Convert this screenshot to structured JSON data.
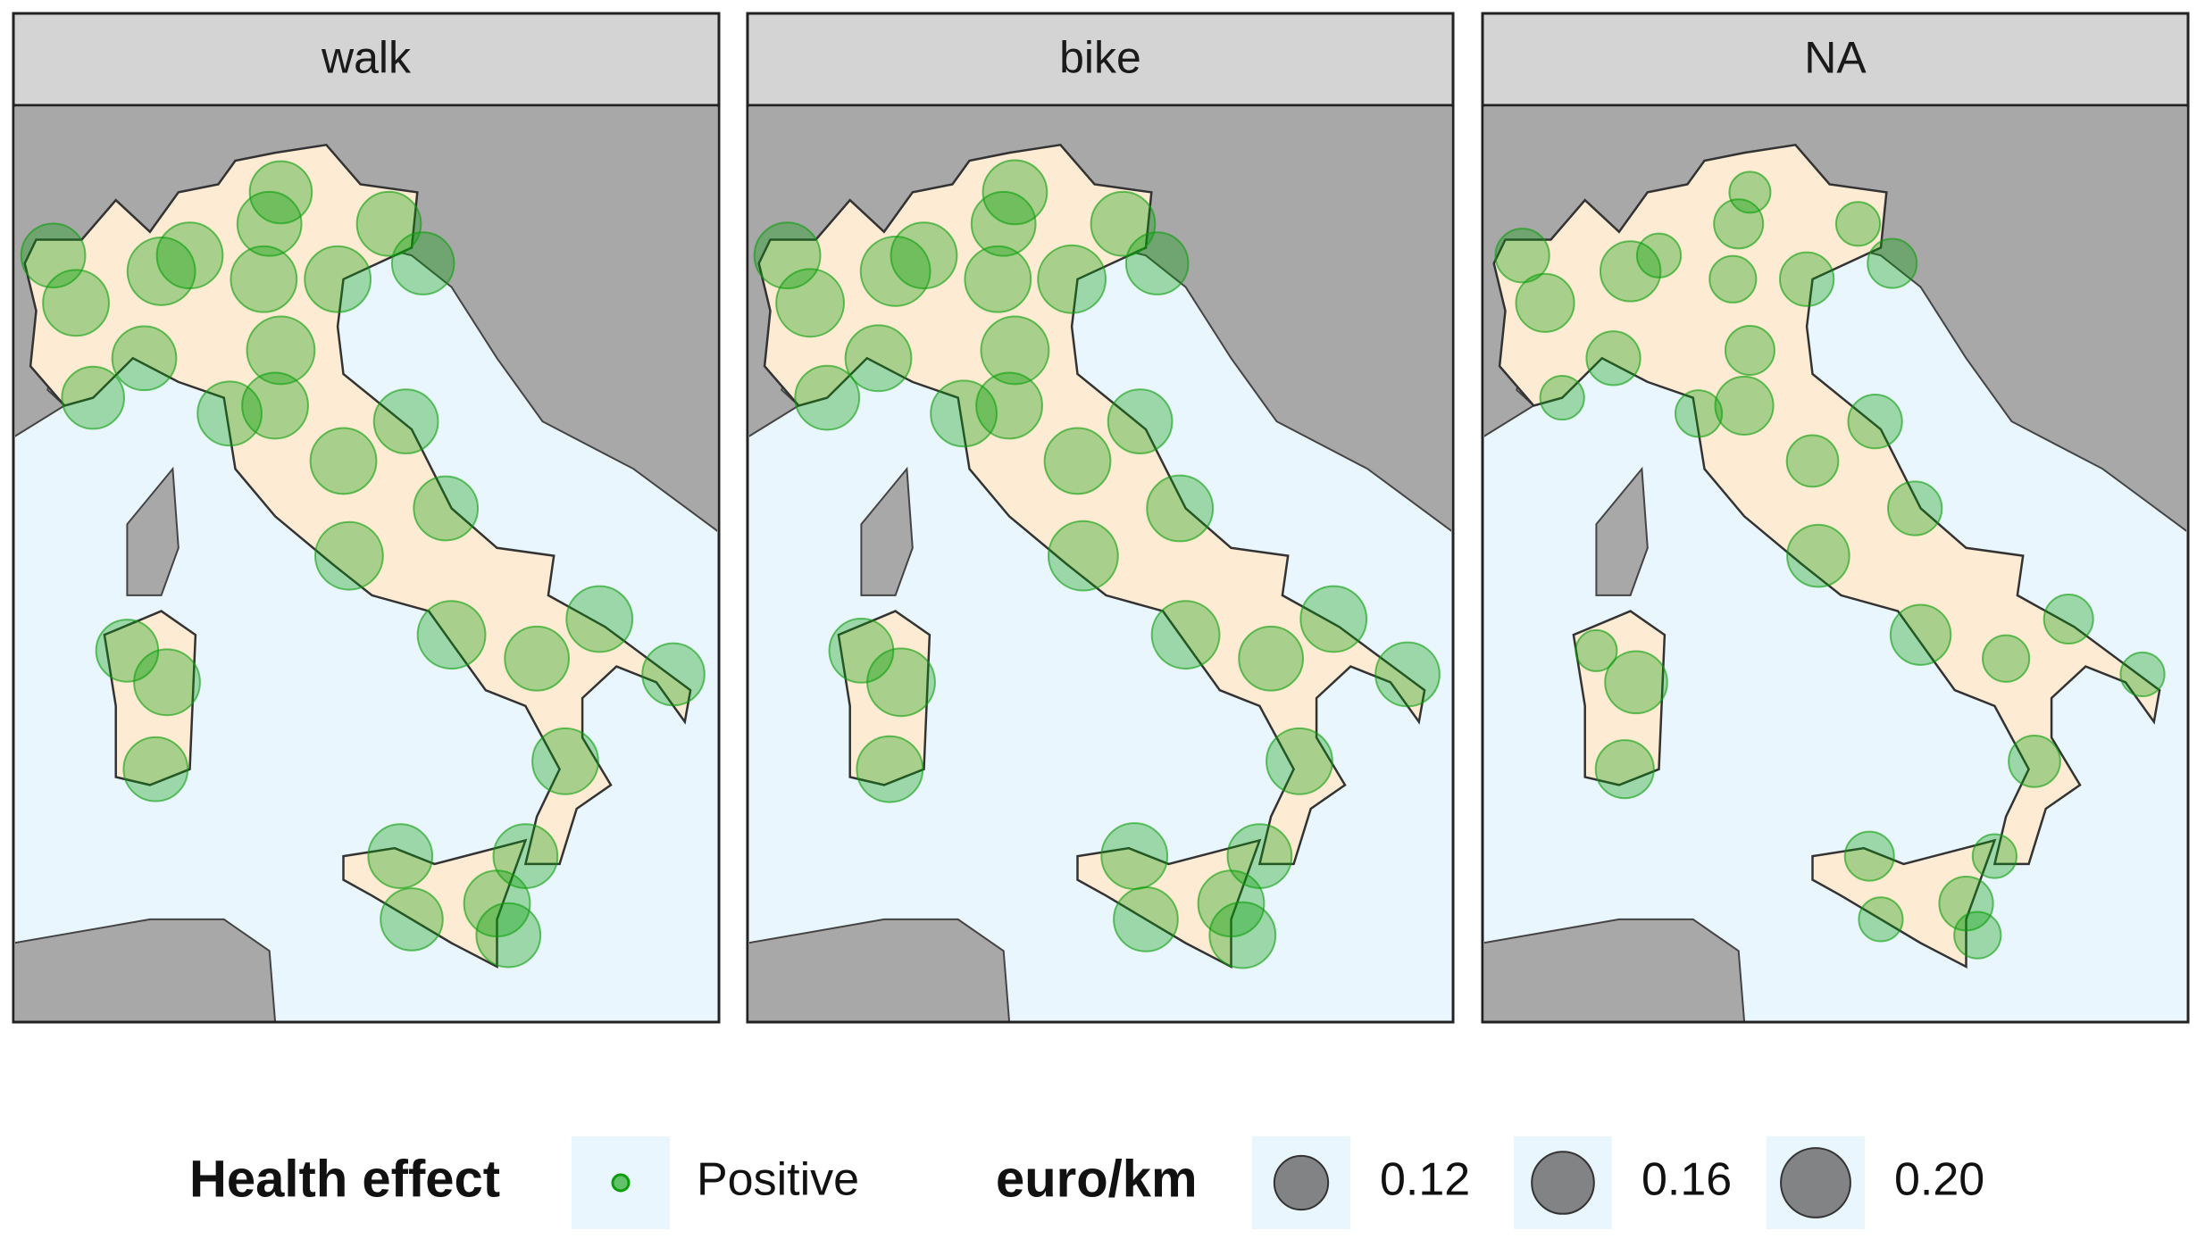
{
  "chart_data": {
    "type": "bubble-map",
    "panels": [
      {
        "label": "walk",
        "color": "#0a9e0a",
        "points": {
          "lon": [
            7.7,
            9.2,
            7.3,
            9.7,
            11.1,
            11.3,
            12.3,
            13.2,
            13.8,
            11.0,
            11.3,
            8.9,
            8.0,
            11.2,
            10.4,
            13.5,
            12.4,
            12.5,
            14.2,
            14.3,
            16.9,
            18.2,
            15.8,
            16.3,
            15.6,
            13.4,
            15.1,
            13.6,
            15.3,
            9.1,
            8.6,
            9.3
          ],
          "lat": [
            45.1,
            45.5,
            45.7,
            45.7,
            46.1,
            46.5,
            45.4,
            46.1,
            45.6,
            45.4,
            44.5,
            44.4,
            43.9,
            43.8,
            43.7,
            43.6,
            43.1,
            41.9,
            42.5,
            40.9,
            41.1,
            40.4,
            40.6,
            39.3,
            38.1,
            38.1,
            37.5,
            37.3,
            37.1,
            39.2,
            40.7,
            40.3
          ],
          "size": [
            0.18,
            0.19,
            0.17,
            0.18,
            0.17,
            0.16,
            0.18,
            0.17,
            0.16,
            0.18,
            0.19,
            0.17,
            0.16,
            0.18,
            0.17,
            0.17,
            0.18,
            0.19,
            0.17,
            0.19,
            0.18,
            0.16,
            0.17,
            0.18,
            0.17,
            0.17,
            0.18,
            0.16,
            0.17,
            0.17,
            0.16,
            0.18
          ]
        }
      },
      {
        "label": "bike",
        "color": "#0a9e0a",
        "points": {
          "lon": [
            7.7,
            9.2,
            7.3,
            9.7,
            11.1,
            11.3,
            12.3,
            13.2,
            13.8,
            11.0,
            11.3,
            8.9,
            8.0,
            11.2,
            10.4,
            13.5,
            12.4,
            12.5,
            14.2,
            14.3,
            16.9,
            18.2,
            15.8,
            16.3,
            15.6,
            13.4,
            15.1,
            13.6,
            15.3,
            9.1,
            8.6,
            9.3
          ],
          "lat": [
            45.1,
            45.5,
            45.7,
            45.7,
            46.1,
            46.5,
            45.4,
            46.1,
            45.6,
            45.4,
            44.5,
            44.4,
            43.9,
            43.8,
            43.7,
            43.6,
            43.1,
            41.9,
            42.5,
            40.9,
            41.1,
            40.4,
            40.6,
            39.3,
            38.1,
            38.1,
            37.5,
            37.3,
            37.1,
            39.2,
            40.7,
            40.3
          ],
          "size": [
            0.19,
            0.2,
            0.18,
            0.18,
            0.17,
            0.17,
            0.19,
            0.17,
            0.16,
            0.18,
            0.19,
            0.18,
            0.17,
            0.18,
            0.18,
            0.17,
            0.18,
            0.2,
            0.18,
            0.19,
            0.18,
            0.17,
            0.17,
            0.18,
            0.17,
            0.18,
            0.18,
            0.17,
            0.18,
            0.18,
            0.17,
            0.19
          ]
        }
      },
      {
        "label": "NA",
        "color": "#0a9e0a",
        "points": {
          "lon": [
            7.7,
            9.2,
            7.3,
            9.7,
            11.1,
            11.3,
            12.3,
            13.2,
            13.8,
            11.0,
            11.3,
            8.9,
            8.0,
            11.2,
            10.4,
            13.5,
            12.4,
            12.5,
            14.2,
            14.3,
            16.9,
            18.2,
            15.8,
            16.3,
            15.6,
            13.4,
            15.1,
            13.6,
            15.3,
            9.1,
            8.6,
            9.3
          ],
          "lat": [
            45.1,
            45.5,
            45.7,
            45.7,
            46.1,
            46.5,
            45.4,
            46.1,
            45.6,
            45.4,
            44.5,
            44.4,
            43.9,
            43.8,
            43.7,
            43.6,
            43.1,
            41.9,
            42.5,
            40.9,
            41.1,
            40.4,
            40.6,
            39.3,
            38.1,
            38.1,
            37.5,
            37.3,
            37.1,
            39.2,
            40.7,
            40.3
          ],
          "size": [
            0.14,
            0.15,
            0.12,
            0.08,
            0.1,
            0.07,
            0.12,
            0.08,
            0.1,
            0.09,
            0.1,
            0.12,
            0.08,
            0.14,
            0.09,
            0.12,
            0.11,
            0.16,
            0.12,
            0.15,
            0.1,
            0.08,
            0.09,
            0.11,
            0.08,
            0.1,
            0.12,
            0.08,
            0.09,
            0.14,
            0.07,
            0.16
          ]
        }
      }
    ],
    "legend": {
      "color_title": "Health effect",
      "color_key": "Positive",
      "size_title": "euro/km",
      "size_breaks": [
        0.12,
        0.16,
        {
          "value": 0.2,
          "label": "0.20"
        }
      ]
    }
  }
}
